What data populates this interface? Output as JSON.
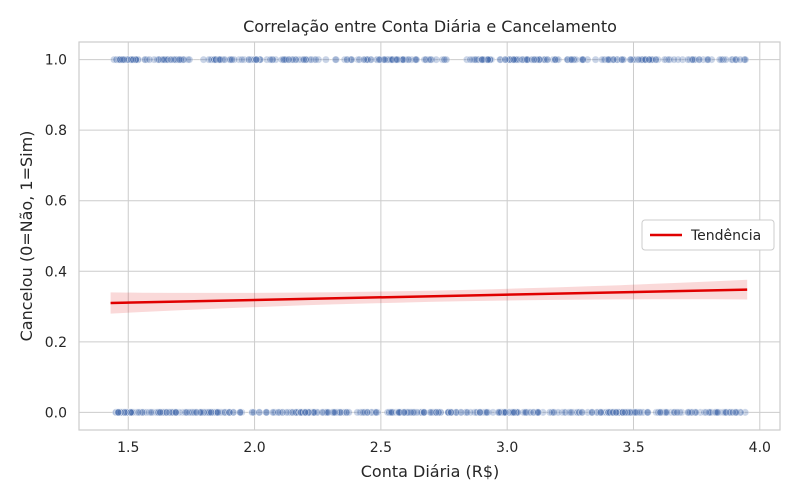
{
  "chart_data": {
    "type": "scatter",
    "title": "Correlação entre Conta Diária e Cancelamento",
    "xlabel": "Conta Diária (R$)",
    "ylabel": "Cancelou (0=Não, 1=Sim)",
    "xlim": [
      1.305,
      4.08
    ],
    "ylim": [
      -0.05,
      1.05
    ],
    "xticks": [
      1.5,
      2.0,
      2.5,
      3.0,
      3.5,
      4.0
    ],
    "xtick_labels": [
      "1.5",
      "2.0",
      "2.5",
      "3.0",
      "3.5",
      "4.0"
    ],
    "yticks": [
      0.0,
      0.2,
      0.4,
      0.6,
      0.8,
      1.0
    ],
    "ytick_labels": [
      "0.0",
      "0.2",
      "0.4",
      "0.6",
      "0.8",
      "1.0"
    ],
    "grid": true,
    "legend_position": "center-right",
    "series": [
      {
        "kind": "points",
        "color": "#4c72b0",
        "alpha": 0.3,
        "x_range_y1": [
          1.43,
          3.95
        ],
        "x_range_y0": [
          1.45,
          3.95
        ],
        "y_values": [
          0,
          1
        ]
      },
      {
        "kind": "trend",
        "name": "Tendência",
        "color": "#e00000",
        "x": [
          1.43,
          3.95
        ],
        "y": [
          0.31,
          0.348
        ],
        "ci_halfwidth": [
          0.03,
          0.028
        ]
      }
    ]
  }
}
